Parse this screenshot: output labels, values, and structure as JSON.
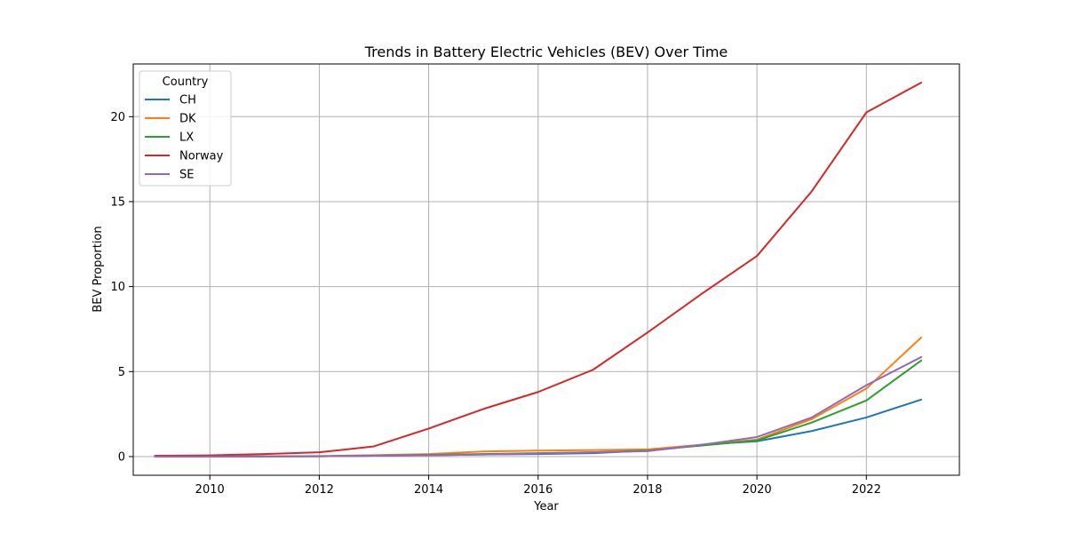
{
  "chart_data": {
    "type": "line",
    "title": "Trends in Battery Electric Vehicles (BEV) Over Time",
    "xlabel": "Year",
    "ylabel": "BEV Proportion",
    "xlim": [
      2008.6,
      2023.7
    ],
    "ylim": [
      -1.1,
      23.1
    ],
    "xticks": [
      2010,
      2012,
      2014,
      2016,
      2018,
      2020,
      2022
    ],
    "yticks": [
      0,
      5,
      10,
      15,
      20
    ],
    "grid": true,
    "legend": {
      "title": "Country",
      "placement": "top-left"
    },
    "x": [
      2009,
      2010,
      2011,
      2012,
      2013,
      2014,
      2015,
      2016,
      2017,
      2018,
      2019,
      2020,
      2021,
      2022,
      2023
    ],
    "series": [
      {
        "name": "CH",
        "color": "#1f77b4",
        "values": [
          0.0,
          0.0,
          0.01,
          0.02,
          0.05,
          0.08,
          0.12,
          0.15,
          0.2,
          0.35,
          0.7,
          0.9,
          1.5,
          2.3,
          3.35
        ]
      },
      {
        "name": "DK",
        "color": "#ff7f0e",
        "values": [
          0.0,
          0.0,
          0.01,
          0.03,
          0.08,
          0.15,
          0.3,
          0.35,
          0.38,
          0.42,
          0.7,
          1.0,
          2.2,
          4.0,
          7.0
        ]
      },
      {
        "name": "LX",
        "color": "#2ca02c",
        "values": [
          0.0,
          0.0,
          0.01,
          0.02,
          0.05,
          0.1,
          0.15,
          0.2,
          0.25,
          0.35,
          0.65,
          0.95,
          2.0,
          3.3,
          5.65
        ]
      },
      {
        "name": "Norway",
        "color": "#d62728",
        "values": [
          0.05,
          0.07,
          0.15,
          0.25,
          0.6,
          1.65,
          2.8,
          3.8,
          5.1,
          7.3,
          9.6,
          11.8,
          15.6,
          20.25,
          22.0
        ]
      },
      {
        "name": "SE",
        "color": "#9467bd",
        "values": [
          0.0,
          0.0,
          0.01,
          0.02,
          0.05,
          0.08,
          0.12,
          0.18,
          0.25,
          0.32,
          0.7,
          1.15,
          2.3,
          4.2,
          5.85
        ]
      }
    ]
  }
}
